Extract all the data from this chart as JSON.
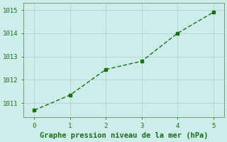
{
  "x": [
    0,
    1,
    2,
    3,
    4,
    5
  ],
  "y": [
    1010.7,
    1011.35,
    1012.45,
    1012.8,
    1014.0,
    1014.9
  ],
  "line_color": "#1a6e1a",
  "marker": "s",
  "marker_size": 3,
  "linestyle": "--",
  "linewidth": 1.0,
  "xlabel": "Graphe pression niveau de la mer (hPa)",
  "xlabel_fontsize": 7.5,
  "xlabel_color": "#1a6e1a",
  "xlabel_bold": true,
  "bg_color": "#ceecea",
  "plot_bg_color": "#ceecea",
  "grid_color": "#b0d8d4",
  "xlim": [
    -0.3,
    5.3
  ],
  "ylim": [
    1010.4,
    1015.3
  ],
  "xticks": [
    0,
    1,
    2,
    3,
    4,
    5
  ],
  "yticks": [
    1011,
    1012,
    1013,
    1014,
    1015
  ],
  "tick_fontsize": 6.5,
  "tick_color": "#1a6e1a",
  "spine_color": "#5a9a5a"
}
